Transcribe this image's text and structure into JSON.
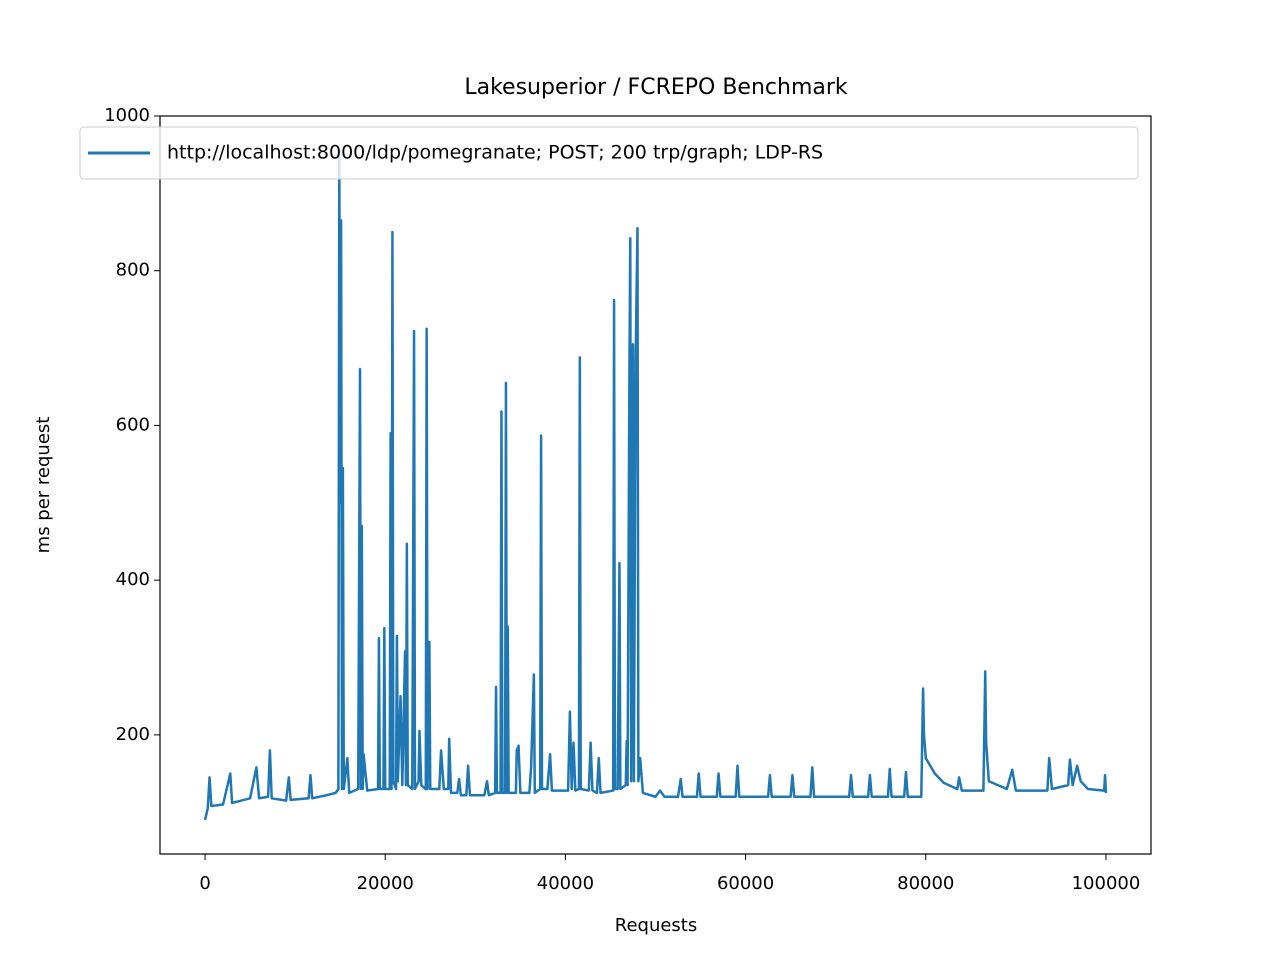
{
  "chart_data": {
    "type": "line",
    "title": "Lakesuperior / FCREPO Benchmark",
    "x_label": "Requests",
    "y_label": "ms per request",
    "xlim": [
      -5000,
      105000
    ],
    "xticks": [
      0,
      20000,
      40000,
      60000,
      80000,
      100000
    ],
    "ylim": [
      46,
      1000
    ],
    "yticks": [
      200,
      400,
      600,
      800,
      1000
    ],
    "legend": "upper left",
    "grid": false,
    "x": [
      0,
      300,
      500,
      700,
      2000,
      2800,
      3000,
      5000,
      5700,
      6000,
      7000,
      7200,
      7400,
      9000,
      9300,
      9500,
      11500,
      11700,
      11900,
      13500,
      14500,
      14800,
      14900,
      15000,
      15100,
      15200,
      15300,
      15400,
      15800,
      16000,
      17000,
      17200,
      17300,
      17400,
      17500,
      17600,
      18000,
      19200,
      19300,
      19400,
      19800,
      19900,
      20000,
      20500,
      20600,
      20700,
      20800,
      20900,
      21200,
      21300,
      21400,
      21700,
      21900,
      22200,
      22300,
      22400,
      22500,
      23000,
      23200,
      23300,
      23700,
      23800,
      24000,
      24500,
      24600,
      24700,
      24900,
      25000,
      26000,
      26200,
      26500,
      27000,
      27100,
      27300,
      28000,
      28200,
      28400,
      29000,
      29200,
      29400,
      31000,
      31300,
      31500,
      32200,
      32300,
      32400,
      32800,
      32900,
      33000,
      33300,
      33400,
      33500,
      33600,
      33700,
      34500,
      34600,
      34800,
      35000,
      36000,
      36200,
      36500,
      36600,
      37200,
      37300,
      37400,
      38000,
      38300,
      38500,
      40300,
      40500,
      40700,
      40900,
      41100,
      41500,
      41600,
      41700,
      42600,
      42800,
      43000,
      43500,
      43700,
      43900,
      45300,
      45400,
      45500,
      45800,
      46000,
      46100,
      46700,
      46800,
      46900,
      47100,
      47200,
      47300,
      47500,
      47600,
      47800,
      48000,
      48100,
      48300,
      48600,
      50000,
      50500,
      51000,
      52500,
      52800,
      53000,
      54600,
      54800,
      55000,
      56800,
      57000,
      57200,
      58900,
      59100,
      59300,
      62500,
      62700,
      62900,
      65000,
      65200,
      65400,
      67200,
      67400,
      67600,
      71500,
      71700,
      71900,
      73600,
      73800,
      74000,
      75800,
      76000,
      76200,
      77600,
      77800,
      78000,
      79500,
      79700,
      79800,
      80000,
      81000,
      82000,
      83500,
      83700,
      84000,
      86400,
      86600,
      86700,
      87000,
      89000,
      89600,
      90000,
      93500,
      93700,
      94000,
      95800,
      96000,
      96300,
      96800,
      97200,
      98000,
      99800,
      99900,
      100000
    ],
    "series": [
      {
        "name": "http://localhost:8000/ldp/pomegranate; POST; 200 trp/graph; LDP-RS",
        "color": "#1f77b4",
        "values": [
          90,
          105,
          145,
          108,
          110,
          150,
          112,
          118,
          158,
          118,
          120,
          180,
          118,
          115,
          145,
          116,
          118,
          148,
          118,
          122,
          125,
          130,
          955,
          500,
          865,
          130,
          545,
          130,
          170,
          125,
          130,
          673,
          130,
          470,
          130,
          175,
          128,
          130,
          325,
          130,
          130,
          338,
          130,
          130,
          590,
          130,
          850,
          140,
          130,
          328,
          140,
          250,
          135,
          308,
          135,
          447,
          135,
          130,
          722,
          130,
          140,
          205,
          135,
          130,
          725,
          130,
          320,
          130,
          130,
          180,
          130,
          130,
          195,
          125,
          125,
          143,
          122,
          122,
          160,
          122,
          122,
          140,
          122,
          125,
          262,
          125,
          125,
          618,
          125,
          125,
          655,
          125,
          340,
          125,
          125,
          180,
          186,
          125,
          125,
          160,
          278,
          125,
          130,
          587,
          130,
          130,
          175,
          128,
          128,
          230,
          130,
          190,
          128,
          130,
          688,
          130,
          128,
          190,
          128,
          125,
          170,
          125,
          128,
          762,
          130,
          130,
          422,
          130,
          135,
          192,
          135,
          658,
          842,
          140,
          705,
          140,
          690,
          855,
          140,
          170,
          125,
          120,
          128,
          120,
          120,
          143,
          120,
          120,
          150,
          120,
          120,
          150,
          120,
          120,
          160,
          120,
          120,
          148,
          120,
          120,
          148,
          120,
          120,
          158,
          120,
          120,
          148,
          120,
          120,
          148,
          120,
          120,
          156,
          120,
          120,
          152,
          120,
          120,
          260,
          200,
          170,
          150,
          138,
          130,
          145,
          128,
          128,
          282,
          190,
          140,
          130,
          155,
          128,
          128,
          170,
          130,
          135,
          168,
          135,
          160,
          140,
          130,
          128,
          148,
          125
        ]
      }
    ]
  }
}
